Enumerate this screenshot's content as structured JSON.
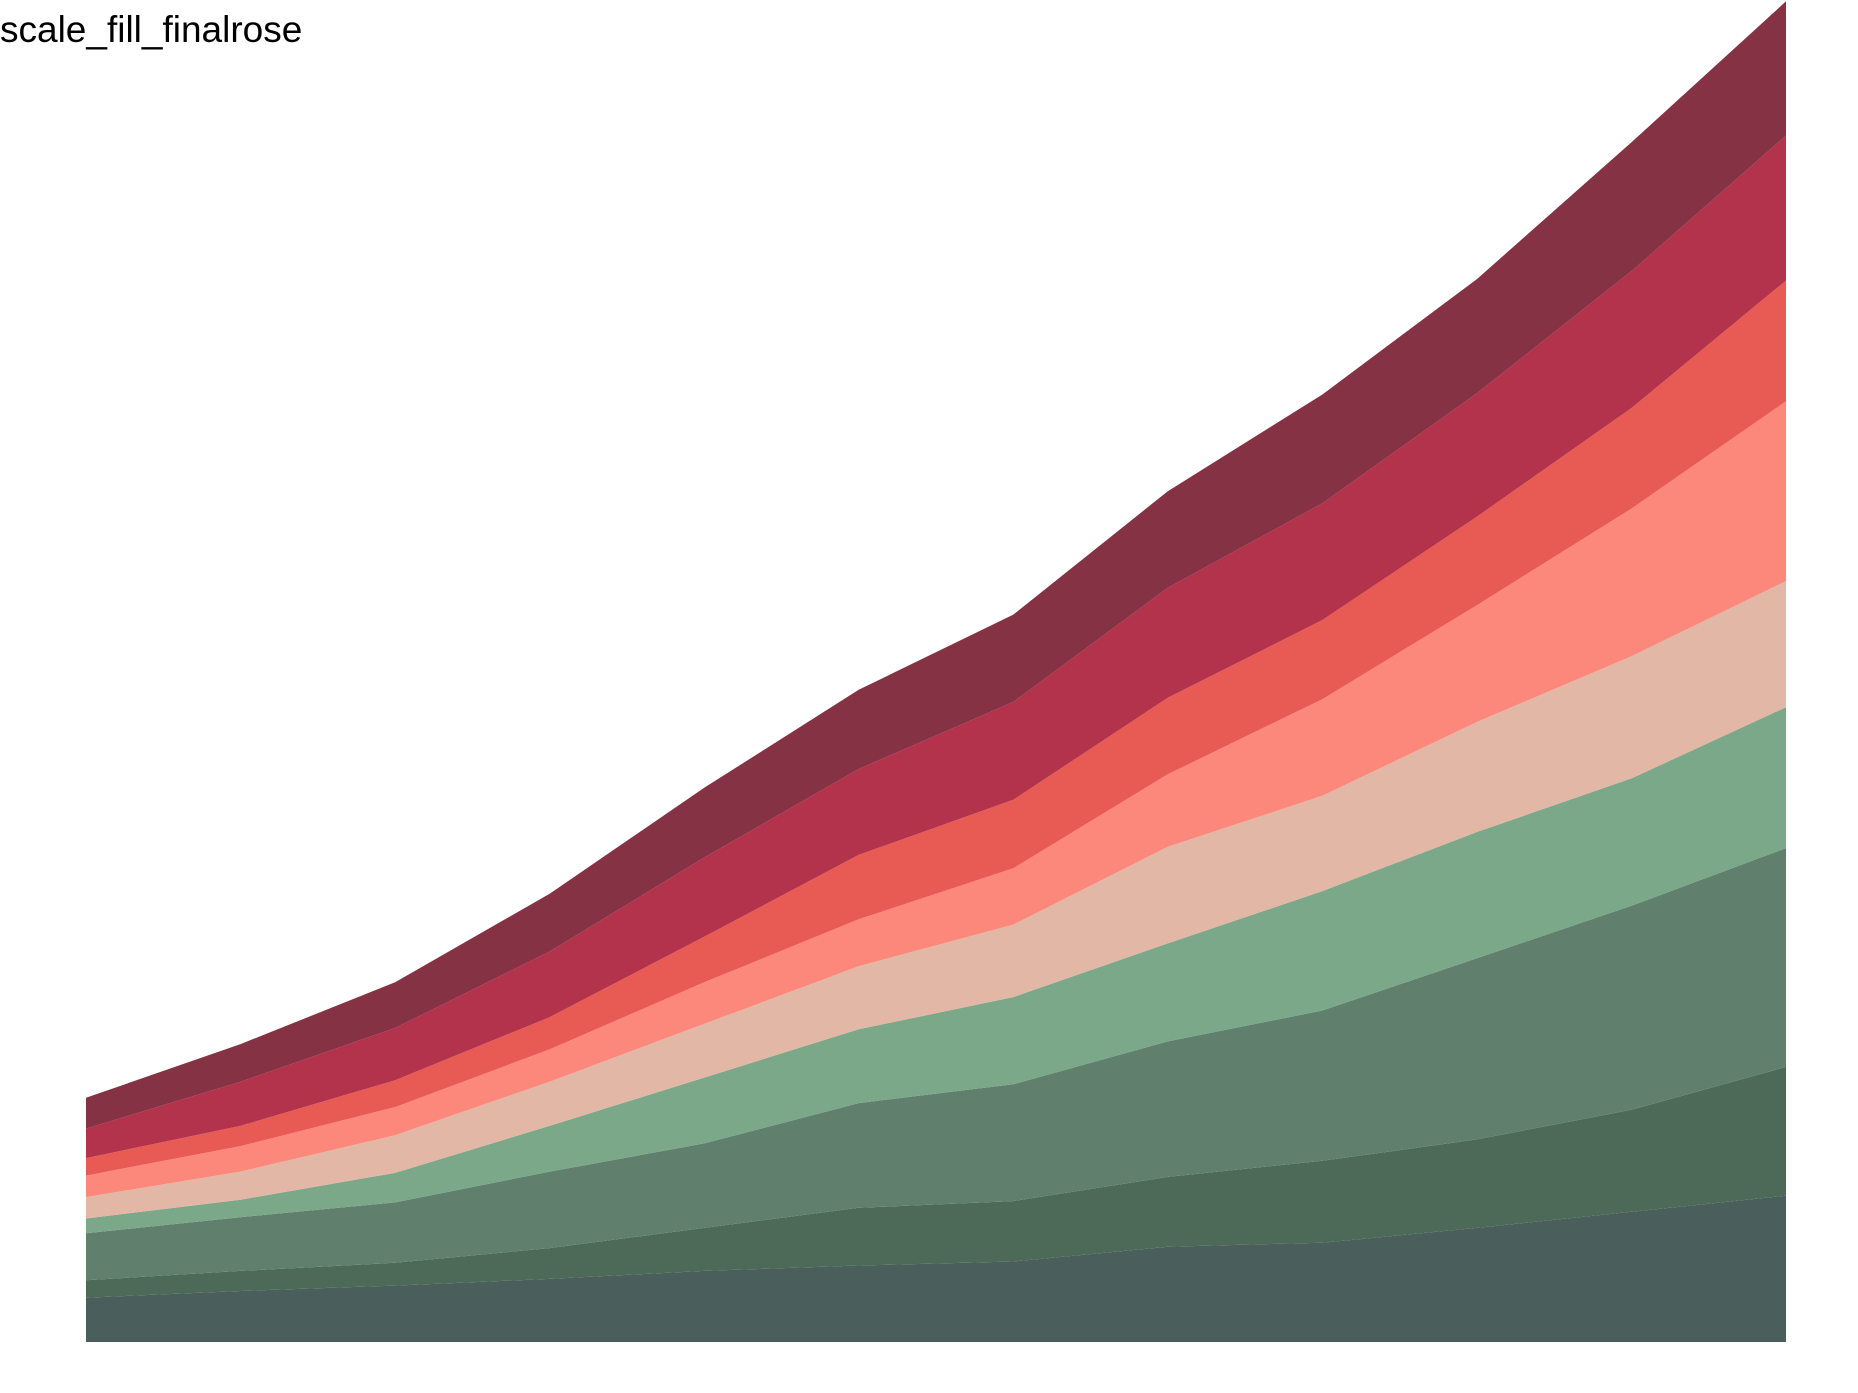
{
  "chart_data": {
    "type": "area",
    "stacked": true,
    "title": "scale_fill_finalrose",
    "xlabel": "",
    "ylabel": "",
    "axes_visible": false,
    "grid": false,
    "legend": "none",
    "x": [
      1,
      2,
      3,
      4,
      5,
      6,
      7,
      8,
      9,
      10,
      11,
      12
    ],
    "ylim": [
      0,
      100
    ],
    "series": [
      {
        "color": "#4a5f5c",
        "values": [
          3.3,
          3.8,
          4.2,
          4.7,
          5.3,
          5.7,
          6.0,
          7.1,
          7.4,
          8.5,
          9.7,
          10.9
        ]
      },
      {
        "color": "#4d6958",
        "values": [
          1.3,
          1.5,
          1.7,
          2.3,
          3.2,
          4.3,
          4.5,
          5.2,
          6.1,
          6.6,
          7.6,
          9.6
        ]
      },
      {
        "color": "#60806d",
        "values": [
          3.5,
          4.0,
          4.5,
          5.7,
          6.3,
          7.8,
          8.7,
          10.1,
          11.2,
          13.5,
          15.2,
          16.3
        ]
      },
      {
        "color": "#7aa889",
        "values": [
          1.1,
          1.3,
          2.2,
          3.4,
          4.9,
          5.5,
          6.5,
          7.3,
          8.9,
          9.4,
          9.5,
          10.5
        ]
      },
      {
        "color": "#e2b7a6",
        "values": [
          1.6,
          2.1,
          2.8,
          3.3,
          4.0,
          4.7,
          5.4,
          7.2,
          7.1,
          8.2,
          9.1,
          9.4
        ]
      },
      {
        "color": "#fc887c",
        "values": [
          1.6,
          1.9,
          2.1,
          2.4,
          3.1,
          3.5,
          4.2,
          5.4,
          7.2,
          8.7,
          11.0,
          13.4
        ]
      },
      {
        "color": "#e85b54",
        "values": [
          1.3,
          1.5,
          2.0,
          2.4,
          3.4,
          4.8,
          5.1,
          5.7,
          5.9,
          6.6,
          7.5,
          9.0
        ]
      },
      {
        "color": "#b3334d",
        "values": [
          2.2,
          3.3,
          3.9,
          4.9,
          5.9,
          6.4,
          7.3,
          8.2,
          8.7,
          9.2,
          10.2,
          10.8
        ]
      },
      {
        "color": "#843244",
        "values": [
          2.3,
          2.8,
          3.4,
          4.3,
          5.2,
          5.9,
          6.5,
          7.2,
          8.1,
          8.5,
          9.6,
          10.0
        ]
      }
    ]
  }
}
